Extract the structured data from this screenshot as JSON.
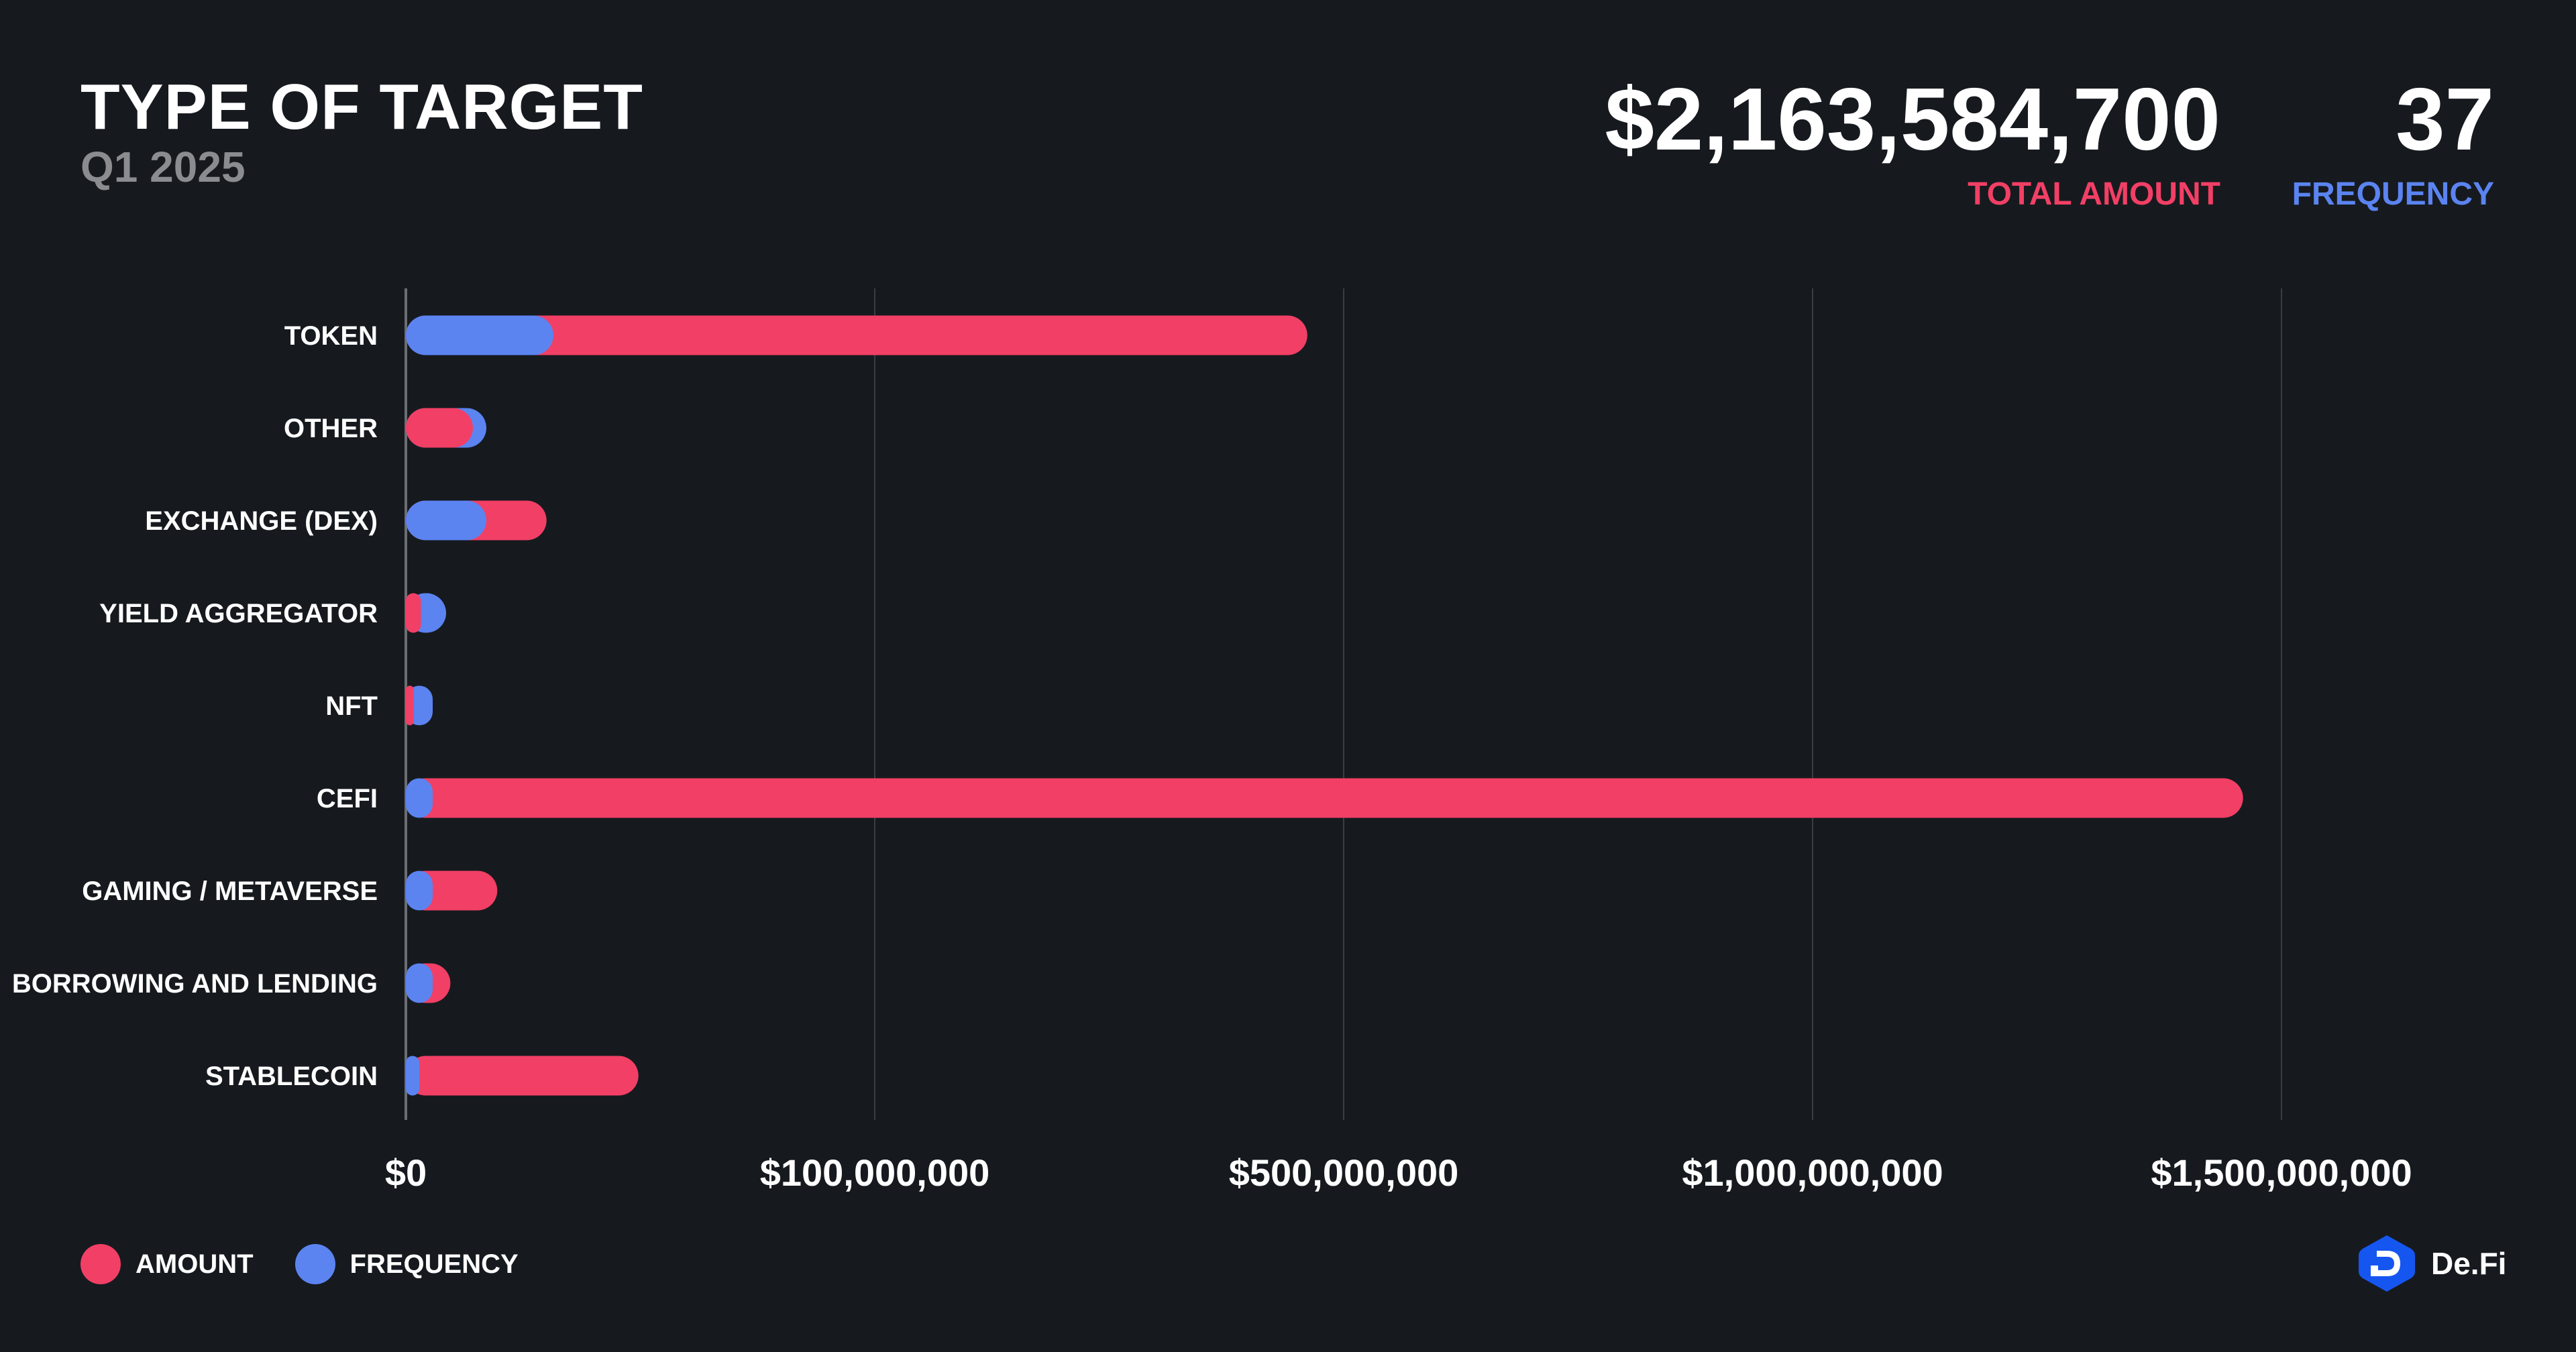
{
  "header": {
    "title": "TYPE OF TARGET",
    "subtitle": "Q1 2025",
    "total_amount": "$2,163,584,700",
    "total_amount_label": "TOTAL AMOUNT",
    "frequency": "37",
    "frequency_label": "FREQUENCY"
  },
  "colors": {
    "amount": "#f23f65",
    "frequency": "#5b84f1",
    "background": "#161a1f",
    "logo": "#1656f0"
  },
  "legend": {
    "amount": "AMOUNT",
    "frequency": "FREQUENCY"
  },
  "logo": {
    "text": "De.Fi"
  },
  "chart_data": {
    "type": "bar",
    "orientation": "horizontal",
    "title": "TYPE OF TARGET",
    "categories": [
      "TOKEN",
      "OTHER",
      "EXCHANGE (DEX)",
      "YIELD AGGREGATOR",
      "NFT",
      "CEFI",
      "GAMING / METAVERSE",
      "BORROWING AND LENDING",
      "STABLECOIN"
    ],
    "series": [
      {
        "name": "AMOUNT",
        "values": [
          469000000,
          14300000,
          30000000,
          3200000,
          1700000,
          1459000000,
          19500000,
          9500000,
          49600000
        ]
      },
      {
        "name": "FREQUENCY",
        "values": [
          11,
          6,
          6,
          3,
          2,
          2,
          2,
          2,
          1
        ]
      }
    ],
    "x_ticks": [
      0,
      100000000,
      500000000,
      1000000000,
      1500000000
    ],
    "x_tick_labels": [
      "$0",
      "$100,000,000",
      "$500,000,000",
      "$1,000,000,000",
      "$1,500,000,000"
    ],
    "grid": true,
    "legend_position": "bottom-left"
  }
}
